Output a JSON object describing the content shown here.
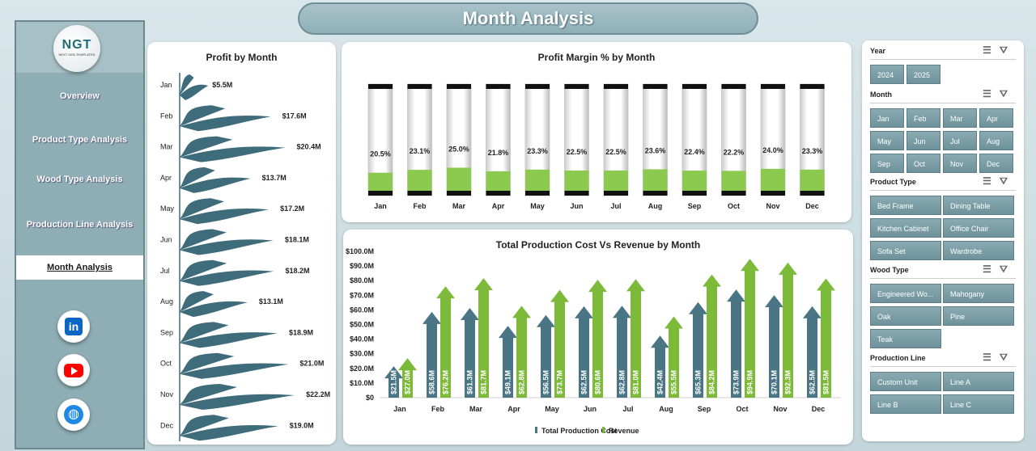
{
  "title": "Month Analysis",
  "logo": {
    "text": "NGT",
    "sub": "NEXT GEN TEMPLATES"
  },
  "nav": [
    "Overview",
    "Product Type Analysis",
    "Wood Type Analysis",
    "Production Line Analysis",
    "Month Analysis"
  ],
  "active_nav": "Month Analysis",
  "social": [
    "linkedin-icon",
    "youtube-icon",
    "globe-icon"
  ],
  "colors": {
    "cost": "#4a7585",
    "revenue": "#7dba3a",
    "margin_fill": "#8cc94f",
    "wave": "#3f6c7a",
    "accent": "#8fb0b8"
  },
  "chart_data": [
    {
      "type": "bar",
      "title": "Profit by Month",
      "orientation": "horizontal",
      "categories": [
        "Jan",
        "Feb",
        "Mar",
        "Apr",
        "May",
        "Jun",
        "Jul",
        "Aug",
        "Sep",
        "Oct",
        "Nov",
        "Dec"
      ],
      "values": [
        5.5,
        17.6,
        20.4,
        13.7,
        17.2,
        18.1,
        18.2,
        13.1,
        18.9,
        21.0,
        22.2,
        19.0
      ],
      "labels": [
        "$5.5M",
        "$17.6M",
        "$20.4M",
        "$13.7M",
        "$17.2M",
        "$18.1M",
        "$18.2M",
        "$13.1M",
        "$18.9M",
        "$21.0M",
        "$22.2M",
        "$19.0M"
      ]
    },
    {
      "type": "bar",
      "title": "Profit Margin % by Month",
      "categories": [
        "Jan",
        "Feb",
        "Mar",
        "Apr",
        "May",
        "Jun",
        "Jul",
        "Aug",
        "Sep",
        "Oct",
        "Nov",
        "Dec"
      ],
      "values": [
        20.5,
        23.1,
        25.0,
        21.8,
        23.3,
        22.5,
        22.5,
        23.6,
        22.4,
        22.2,
        24.0,
        23.3
      ],
      "labels": [
        "20.5%",
        "23.1%",
        "25.0%",
        "21.8%",
        "23.3%",
        "22.5%",
        "22.5%",
        "23.6%",
        "22.4%",
        "22.2%",
        "24.0%",
        "23.3%"
      ],
      "ylim": [
        0,
        100
      ]
    },
    {
      "type": "bar",
      "title": "Total Production Cost Vs Revenue by Month",
      "categories": [
        "Jan",
        "Feb",
        "Mar",
        "Apr",
        "May",
        "Jun",
        "Jul",
        "Aug",
        "Sep",
        "Oct",
        "Nov",
        "Dec"
      ],
      "yticks": [
        "$0",
        "$10.0M",
        "$20.0M",
        "$30.0M",
        "$40.0M",
        "$50.0M",
        "$60.0M",
        "$70.0M",
        "$80.0M",
        "$90.0M",
        "$100.0M"
      ],
      "ylim": [
        0,
        100
      ],
      "legend": "bottom",
      "series": [
        {
          "name": "Total Production Cost",
          "values": [
            21.5,
            58.6,
            61.3,
            49.1,
            56.5,
            62.5,
            62.8,
            42.4,
            65.3,
            73.9,
            70.1,
            62.5
          ],
          "labels": [
            "$21.5M",
            "$58.6M",
            "$61.3M",
            "$49.1M",
            "$56.5M",
            "$62.5M",
            "$62.8M",
            "$42.4M",
            "$65.3M",
            "$73.9M",
            "$70.1M",
            "$62.5M"
          ]
        },
        {
          "name": "Revenue",
          "values": [
            27.0,
            76.2,
            81.7,
            62.8,
            73.7,
            80.6,
            81.0,
            55.5,
            84.2,
            94.9,
            92.3,
            81.5
          ],
          "labels": [
            "$27.0M",
            "$76.2M",
            "$81.7M",
            "$62.8M",
            "$73.7M",
            "$80.6M",
            "$81.0M",
            "$55.5M",
            "$84.2M",
            "$94.9M",
            "$92.3M",
            "$81.5M"
          ]
        }
      ]
    }
  ],
  "slicers": [
    {
      "title": "Year",
      "items": [
        "2024",
        "2025"
      ]
    },
    {
      "title": "Month",
      "items": [
        "Jan",
        "Feb",
        "Mar",
        "Apr",
        "May",
        "Jun",
        "Jul",
        "Aug",
        "Sep",
        "Oct",
        "Nov",
        "Dec"
      ]
    },
    {
      "title": "Product Type",
      "items": [
        "Bed Frame",
        "Dining Table",
        "Kitchen Cabinet",
        "Office Chair",
        "Sofa Set",
        "Wardrobe"
      ]
    },
    {
      "title": "Wood Type",
      "items": [
        "Engineered Wo...",
        "Mahogany",
        "Oak",
        "Pine",
        "Teak"
      ]
    },
    {
      "title": "Production Line",
      "items": [
        "Custom Unit",
        "Line A",
        "Line B",
        "Line C"
      ]
    }
  ]
}
